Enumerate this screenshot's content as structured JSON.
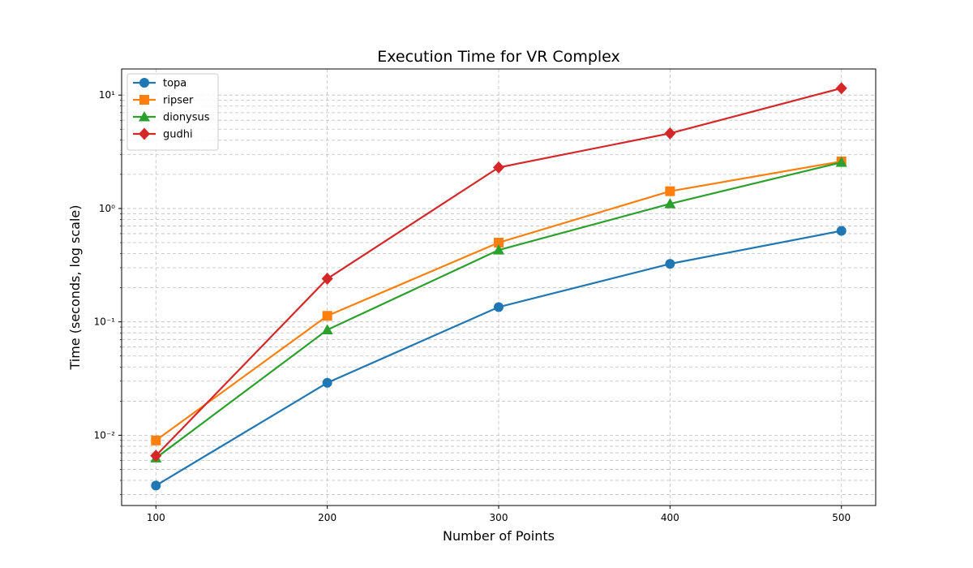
{
  "chart_data": {
    "type": "line",
    "title": "Execution Time for VR Complex",
    "xlabel": "Number of Points",
    "ylabel": "Time (seconds, log scale)",
    "x": [
      100,
      200,
      300,
      400,
      500
    ],
    "xticks": [
      100,
      200,
      300,
      400,
      500
    ],
    "xlim": [
      80,
      520
    ],
    "yscale": "log",
    "ylim": [
      0.0024,
      17
    ],
    "yticks": [
      {
        "value": 0.01,
        "label": "10⁻²"
      },
      {
        "value": 0.1,
        "label": "10⁻¹"
      },
      {
        "value": 1,
        "label": "10⁰"
      },
      {
        "value": 10,
        "label": "10¹"
      }
    ],
    "grid": true,
    "legend_position": "top-left",
    "series": [
      {
        "name": "topa",
        "color": "#1f77b4",
        "marker": "circle",
        "values": [
          0.0036,
          0.029,
          0.135,
          0.325,
          0.635
        ]
      },
      {
        "name": "ripser",
        "color": "#ff7f0e",
        "marker": "square",
        "values": [
          0.009,
          0.113,
          0.5,
          1.42,
          2.6
        ]
      },
      {
        "name": "dionysus",
        "color": "#2ca02c",
        "marker": "triangle",
        "values": [
          0.0063,
          0.085,
          0.43,
          1.1,
          2.55
        ]
      },
      {
        "name": "gudhi",
        "color": "#d62728",
        "marker": "diamond",
        "values": [
          0.0066,
          0.24,
          2.3,
          4.6,
          11.5
        ]
      }
    ]
  }
}
